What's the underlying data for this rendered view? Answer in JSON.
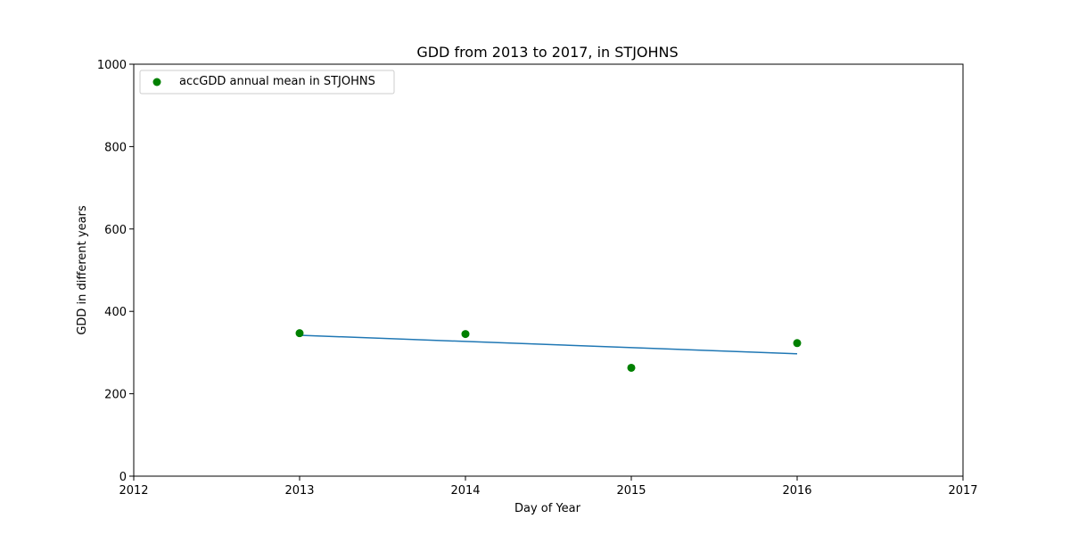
{
  "chart_data": {
    "type": "scatter",
    "title": "GDD from 2013 to 2017, in STJOHNS",
    "xlabel": "Day of Year",
    "ylabel": "GDD in different years",
    "xlim": [
      2012,
      2017
    ],
    "ylim": [
      0,
      1000
    ],
    "x_ticks": [
      2012,
      2013,
      2014,
      2015,
      2016,
      2017
    ],
    "y_ticks": [
      0,
      200,
      400,
      600,
      800,
      1000
    ],
    "grid": false,
    "legend_position": "top-left",
    "series": [
      {
        "name": "accGDD annual mean in STJOHNS",
        "kind": "scatter",
        "color": "#008000",
        "x": [
          2013,
          2014,
          2015,
          2016
        ],
        "y": [
          347,
          345,
          263,
          323
        ]
      },
      {
        "kind": "line",
        "color": "#1f77b4",
        "x": [
          2013,
          2016
        ],
        "y": [
          342,
          297
        ]
      }
    ]
  }
}
